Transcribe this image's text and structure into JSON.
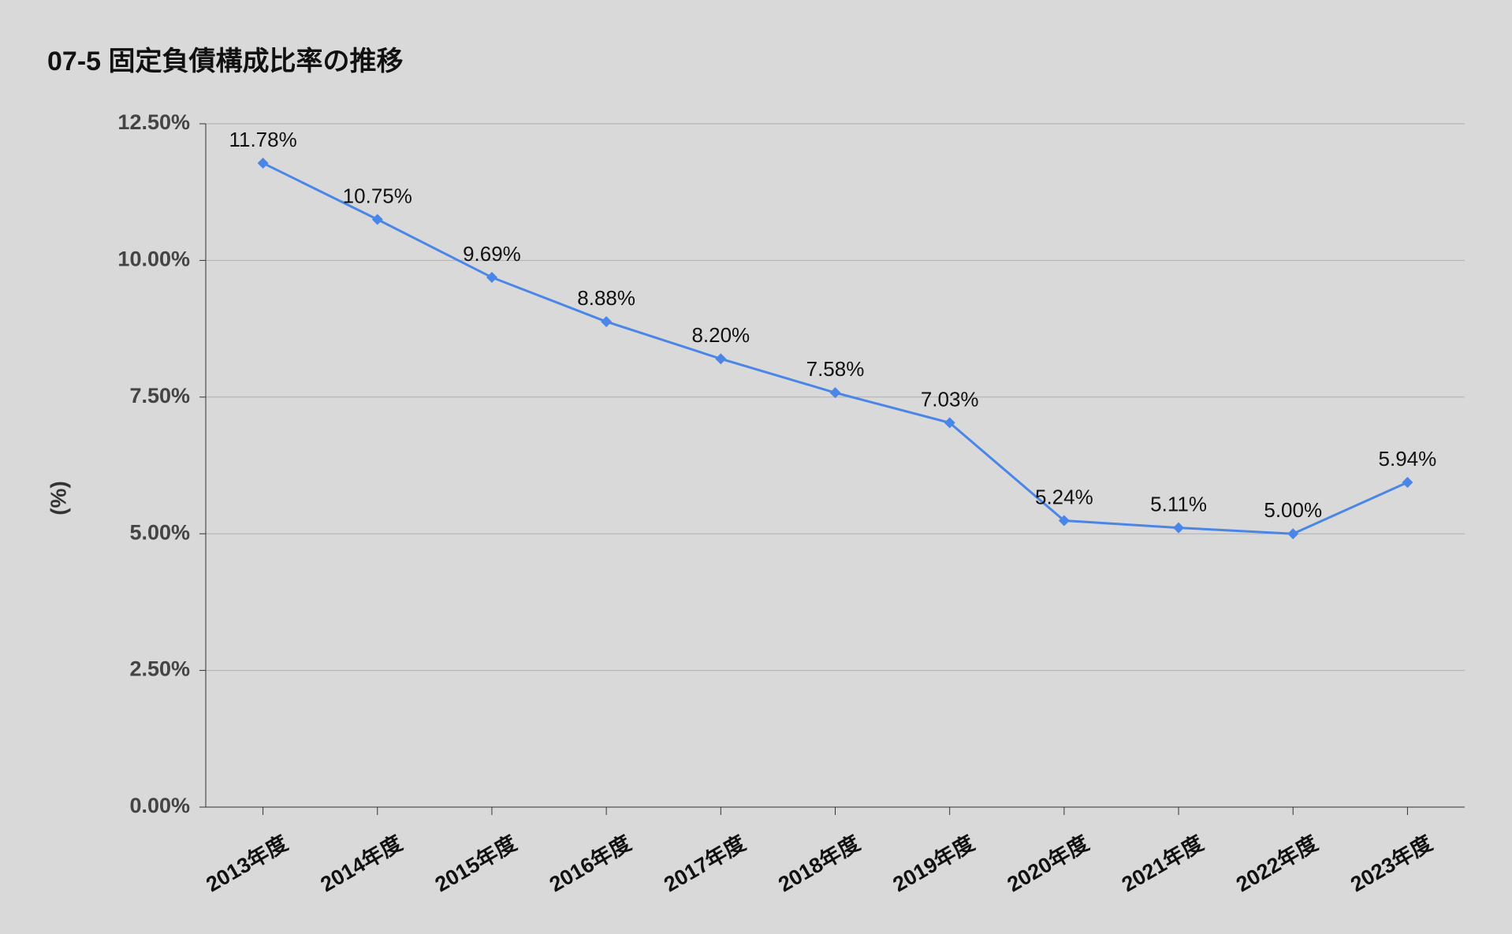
{
  "chart_data": {
    "type": "line",
    "title": "07-5 固定負債構成比率の推移",
    "y_label": "(%)",
    "categories": [
      "2013年度",
      "2014年度",
      "2015年度",
      "2016年度",
      "2017年度",
      "2018年度",
      "2019年度",
      "2020年度",
      "2021年度",
      "2022年度",
      "2023年度"
    ],
    "values": [
      11.78,
      10.75,
      9.69,
      8.88,
      8.2,
      7.58,
      7.03,
      5.24,
      5.11,
      5.0,
      5.94
    ],
    "value_labels": [
      "11.78%",
      "10.75%",
      "9.69%",
      "8.88%",
      "8.20%",
      "7.58%",
      "7.03%",
      "5.24%",
      "5.11%",
      "5.00%",
      "5.94%"
    ],
    "color": "#4a86e8",
    "ylim": [
      0,
      12.5
    ],
    "yticks": [
      {
        "value": 0,
        "label": "0.00%"
      },
      {
        "value": 2.5,
        "label": "2.50%"
      },
      {
        "value": 5,
        "label": "5.00%"
      },
      {
        "value": 7.5,
        "label": "7.50%"
      },
      {
        "value": 10,
        "label": "10.00%"
      },
      {
        "value": 12.5,
        "label": "12.50%"
      }
    ],
    "grid": true
  }
}
